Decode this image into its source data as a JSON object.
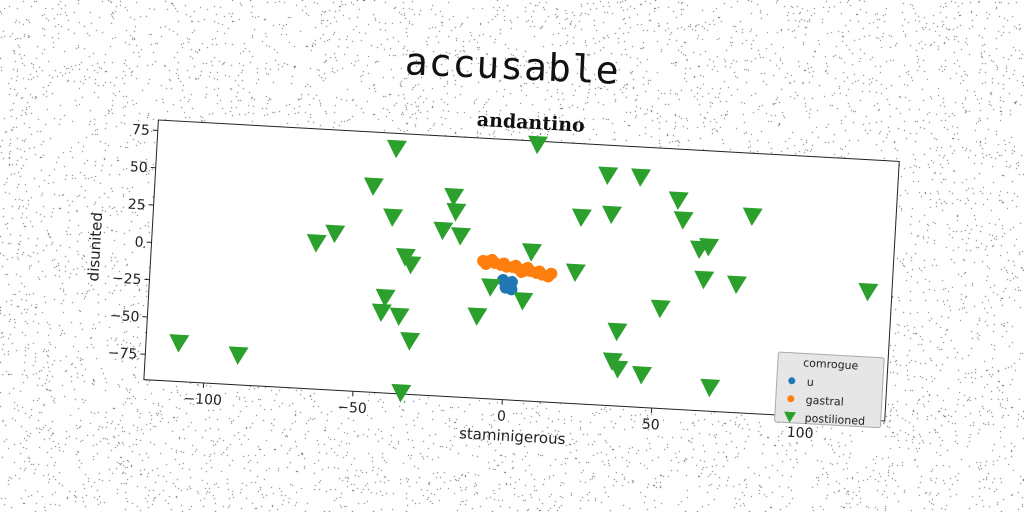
{
  "suptitle": "accusable",
  "chart_data": {
    "type": "scatter",
    "title": "andantino",
    "xlabel": "staminigerous",
    "ylabel": "disunited",
    "xlim": [
      -120,
      128
    ],
    "ylim": [
      -92,
      82
    ],
    "xticks": [
      -100,
      -50,
      0,
      50,
      100
    ],
    "xtick_labels": [
      "−100",
      "−50",
      "0",
      "50",
      "100"
    ],
    "yticks": [
      75,
      50,
      25,
      0,
      -25,
      -50,
      -75
    ],
    "ytick_labels": [
      "75",
      "50",
      "25",
      "0",
      "−25",
      "−50",
      "−75"
    ],
    "grid": false,
    "legend": {
      "title": "comrogue",
      "placement": "lower right"
    },
    "series": [
      {
        "name": "u",
        "marker": "circle",
        "color": "#1f77b4",
        "points": [
          [
            -1,
            -14
          ],
          [
            0,
            -16
          ],
          [
            1,
            -13
          ],
          [
            -2,
            -12
          ],
          [
            1,
            -18
          ],
          [
            -1,
            -17
          ]
        ]
      },
      {
        "name": "gastral",
        "marker": "circle",
        "color": "#ff7f0e",
        "points": [
          [
            -9,
            0
          ],
          [
            -7,
            0
          ],
          [
            -5,
            -1
          ],
          [
            -3,
            -2
          ],
          [
            -1,
            -3
          ],
          [
            1,
            -3
          ],
          [
            3,
            -4
          ],
          [
            5,
            -5
          ],
          [
            7,
            -5
          ],
          [
            9,
            -6
          ],
          [
            11,
            -7
          ],
          [
            13,
            -8
          ],
          [
            -6,
            1
          ],
          [
            -2,
            -1
          ],
          [
            2,
            -2
          ],
          [
            6,
            -3
          ],
          [
            10,
            -5
          ],
          [
            14,
            -6
          ],
          [
            -8,
            -2
          ],
          [
            4,
            -6
          ]
        ]
      },
      {
        "name": "postilioned",
        "marker": "triangle-down",
        "color": "#2ca02c",
        "points": [
          [
            -40,
            72
          ],
          [
            7,
            80
          ],
          [
            31,
            62
          ],
          [
            42,
            62
          ],
          [
            55,
            48
          ],
          [
            80,
            40
          ],
          [
            -47,
            46
          ],
          [
            -20,
            42
          ],
          [
            -19,
            32
          ],
          [
            -40,
            26
          ],
          [
            -23,
            19
          ],
          [
            -17,
            16
          ],
          [
            -59,
            13
          ],
          [
            -65,
            6
          ],
          [
            23,
            33
          ],
          [
            33,
            36
          ],
          [
            57,
            35
          ],
          [
            63,
            16
          ],
          [
            66,
            18
          ],
          [
            7,
            8
          ],
          [
            -35,
            0
          ],
          [
            -33,
            -5
          ],
          [
            22,
            -4
          ],
          [
            65,
            -4
          ],
          [
            76,
            -6
          ],
          [
            120,
            -6
          ],
          [
            -6,
            -17
          ],
          [
            -41,
            -28
          ],
          [
            -42,
            -38
          ],
          [
            -36,
            -40
          ],
          [
            -10,
            -37
          ],
          [
            5,
            -25
          ],
          [
            51,
            -25
          ],
          [
            37,
            -42
          ],
          [
            -32,
            -56
          ],
          [
            36,
            -62
          ],
          [
            38,
            -67
          ],
          [
            46,
            -70
          ],
          [
            69,
            -76
          ],
          [
            98,
            -56
          ],
          [
            -109,
            -66
          ],
          [
            -89,
            -72
          ],
          [
            -34,
            -91
          ]
        ]
      }
    ]
  }
}
